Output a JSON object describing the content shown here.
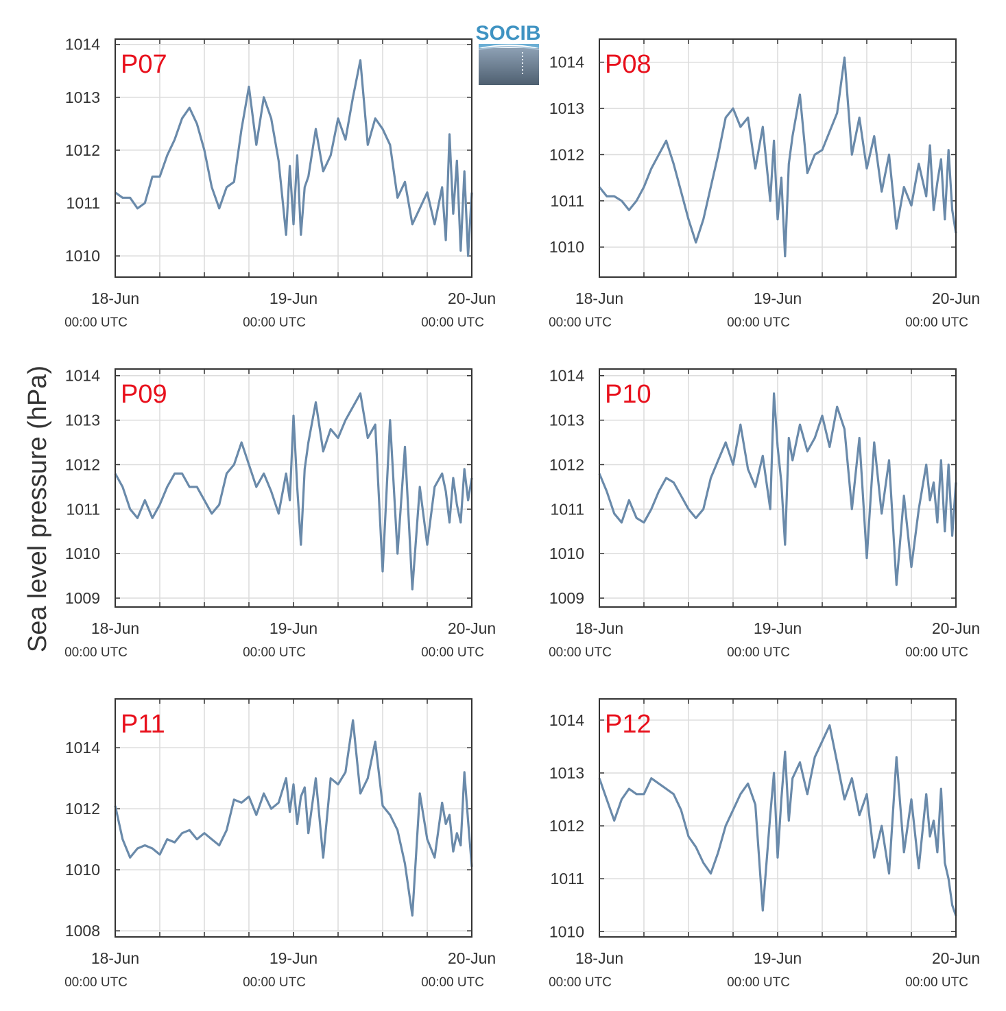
{
  "figure": {
    "ylabel": "Sea level pressure (hPa)",
    "logo_text": "SOCIB",
    "series_color": "#6a8aaa",
    "label_color": "#e8101c",
    "grid_color": "#dcdcdc"
  },
  "chart_data": [
    {
      "type": "line",
      "panel_label": "P07",
      "x_ticks": [
        "18-Jun",
        "19-Jun",
        "20-Jun"
      ],
      "x_ticks_sub": [
        "00:00 UTC",
        "00:00 UTC",
        "00:00 UTC"
      ],
      "xlim": [
        0,
        48
      ],
      "ylim": [
        1009.6,
        1014.1
      ],
      "y_ticks": [
        1010,
        1011,
        1012,
        1013,
        1014
      ],
      "x": [
        0,
        1,
        2,
        3,
        4,
        5,
        6,
        7,
        8,
        9,
        10,
        11,
        12,
        13,
        14,
        15,
        16,
        17,
        18,
        19,
        20,
        21,
        22,
        23,
        23.5,
        24,
        24.5,
        25,
        25.5,
        26,
        27,
        28,
        29,
        30,
        31,
        32,
        33,
        34,
        35,
        36,
        37,
        38,
        39,
        40,
        41,
        42,
        43,
        44,
        44.5,
        45,
        45.5,
        46,
        46.5,
        47,
        47.5,
        48
      ],
      "y": [
        1011.2,
        1011.1,
        1011.1,
        1010.9,
        1011.0,
        1011.5,
        1011.5,
        1011.9,
        1012.2,
        1012.6,
        1012.8,
        1012.5,
        1012.0,
        1011.3,
        1010.9,
        1011.3,
        1011.4,
        1012.4,
        1013.2,
        1012.1,
        1013.0,
        1012.6,
        1011.8,
        1010.4,
        1011.7,
        1010.6,
        1011.9,
        1010.4,
        1011.3,
        1011.5,
        1012.4,
        1011.6,
        1011.9,
        1012.6,
        1012.2,
        1013.0,
        1013.7,
        1012.1,
        1012.6,
        1012.4,
        1012.1,
        1011.1,
        1011.4,
        1010.6,
        1010.9,
        1011.2,
        1010.6,
        1011.3,
        1010.3,
        1012.3,
        1010.8,
        1011.8,
        1010.1,
        1011.6,
        1010.0,
        1011.2
      ]
    },
    {
      "type": "line",
      "panel_label": "P08",
      "x_ticks": [
        "18-Jun",
        "19-Jun",
        "20-Jun"
      ],
      "x_ticks_sub": [
        "00:00 UTC",
        "00:00 UTC",
        "00:00 UTC"
      ],
      "xlim": [
        0,
        48
      ],
      "ylim": [
        1009.35,
        1014.5
      ],
      "y_ticks": [
        1010,
        1011,
        1012,
        1013,
        1014
      ],
      "x": [
        0,
        1,
        2,
        3,
        4,
        5,
        6,
        7,
        8,
        9,
        10,
        11,
        12,
        13,
        14,
        15,
        16,
        17,
        18,
        19,
        20,
        21,
        22,
        23,
        23.5,
        24,
        24.5,
        25,
        25.5,
        26,
        27,
        28,
        29,
        30,
        31,
        32,
        33,
        34,
        35,
        36,
        37,
        38,
        39,
        40,
        41,
        42,
        43,
        44,
        44.5,
        45,
        45.5,
        46,
        46.5,
        47,
        47.5,
        48
      ],
      "y": [
        1011.3,
        1011.1,
        1011.1,
        1011.0,
        1010.8,
        1011.0,
        1011.3,
        1011.7,
        1012.0,
        1012.3,
        1011.8,
        1011.2,
        1010.6,
        1010.1,
        1010.6,
        1011.3,
        1012.0,
        1012.8,
        1013.0,
        1012.6,
        1012.8,
        1011.7,
        1012.6,
        1011.0,
        1012.3,
        1010.6,
        1011.5,
        1009.8,
        1011.8,
        1012.4,
        1013.3,
        1011.6,
        1012.0,
        1012.1,
        1012.5,
        1012.9,
        1014.1,
        1012.0,
        1012.8,
        1011.7,
        1012.4,
        1011.2,
        1012.0,
        1010.4,
        1011.3,
        1010.9,
        1011.8,
        1011.1,
        1012.2,
        1010.8,
        1011.4,
        1011.9,
        1010.6,
        1012.1,
        1010.8,
        1010.3
      ]
    },
    {
      "type": "line",
      "panel_label": "P09",
      "x_ticks": [
        "18-Jun",
        "19-Jun",
        "20-Jun"
      ],
      "x_ticks_sub": [
        "00:00 UTC",
        "00:00 UTC",
        "00:00 UTC"
      ],
      "xlim": [
        0,
        48
      ],
      "ylim": [
        1008.8,
        1014.15
      ],
      "y_ticks": [
        1009,
        1010,
        1011,
        1012,
        1013,
        1014
      ],
      "x": [
        0,
        1,
        2,
        3,
        4,
        5,
        6,
        7,
        8,
        9,
        10,
        11,
        12,
        13,
        14,
        15,
        16,
        17,
        18,
        19,
        20,
        21,
        22,
        23,
        23.5,
        24,
        24.5,
        25,
        25.5,
        26,
        27,
        28,
        29,
        30,
        31,
        32,
        33,
        34,
        35,
        36,
        37,
        38,
        39,
        40,
        41,
        42,
        43,
        44,
        44.5,
        45,
        45.5,
        46,
        46.5,
        47,
        47.5,
        48
      ],
      "y": [
        1011.8,
        1011.5,
        1011.0,
        1010.8,
        1011.2,
        1010.8,
        1011.1,
        1011.5,
        1011.8,
        1011.8,
        1011.5,
        1011.5,
        1011.2,
        1010.9,
        1011.1,
        1011.8,
        1012.0,
        1012.5,
        1012.0,
        1011.5,
        1011.8,
        1011.4,
        1010.9,
        1011.8,
        1011.2,
        1013.1,
        1011.5,
        1010.2,
        1011.9,
        1012.5,
        1013.4,
        1012.3,
        1012.8,
        1012.6,
        1013.0,
        1013.3,
        1013.6,
        1012.6,
        1012.9,
        1009.6,
        1013.0,
        1010.0,
        1012.4,
        1009.2,
        1011.5,
        1010.2,
        1011.5,
        1011.8,
        1011.4,
        1010.7,
        1011.7,
        1011.1,
        1010.7,
        1011.9,
        1011.2,
        1011.7
      ]
    },
    {
      "type": "line",
      "panel_label": "P10",
      "x_ticks": [
        "18-Jun",
        "19-Jun",
        "20-Jun"
      ],
      "x_ticks_sub": [
        "00:00 UTC",
        "00:00 UTC",
        "00:00 UTC"
      ],
      "xlim": [
        0,
        48
      ],
      "ylim": [
        1008.8,
        1014.15
      ],
      "y_ticks": [
        1009,
        1010,
        1011,
        1012,
        1013,
        1014
      ],
      "x": [
        0,
        1,
        2,
        3,
        4,
        5,
        6,
        7,
        8,
        9,
        10,
        11,
        12,
        13,
        14,
        15,
        16,
        17,
        18,
        19,
        20,
        21,
        22,
        23,
        23.5,
        24,
        24.5,
        25,
        25.5,
        26,
        27,
        28,
        29,
        30,
        31,
        32,
        33,
        34,
        35,
        36,
        37,
        38,
        39,
        40,
        41,
        42,
        43,
        44,
        44.5,
        45,
        45.5,
        46,
        46.5,
        47,
        47.5,
        48
      ],
      "y": [
        1011.8,
        1011.4,
        1010.9,
        1010.7,
        1011.2,
        1010.8,
        1010.7,
        1011.0,
        1011.4,
        1011.7,
        1011.6,
        1011.3,
        1011.0,
        1010.8,
        1011.0,
        1011.7,
        1012.1,
        1012.5,
        1012.0,
        1012.9,
        1011.9,
        1011.5,
        1012.2,
        1011.0,
        1013.6,
        1012.4,
        1011.6,
        1010.2,
        1012.6,
        1012.1,
        1012.9,
        1012.3,
        1012.6,
        1013.1,
        1012.4,
        1013.3,
        1012.8,
        1011.0,
        1012.6,
        1009.9,
        1012.5,
        1010.9,
        1012.1,
        1009.3,
        1011.3,
        1009.7,
        1011.0,
        1012.0,
        1011.2,
        1011.6,
        1010.7,
        1012.1,
        1010.5,
        1012.0,
        1010.4,
        1011.6
      ]
    },
    {
      "type": "line",
      "panel_label": "P11",
      "x_ticks": [
        "18-Jun",
        "19-Jun",
        "20-Jun"
      ],
      "x_ticks_sub": [
        "00:00 UTC",
        "00:00 UTC",
        "00:00 UTC"
      ],
      "xlim": [
        0,
        48
      ],
      "ylim": [
        1007.8,
        1015.6
      ],
      "y_ticks": [
        1008,
        1010,
        1012,
        1014
      ],
      "x": [
        0,
        1,
        2,
        3,
        4,
        5,
        6,
        7,
        8,
        9,
        10,
        11,
        12,
        13,
        14,
        15,
        16,
        17,
        18,
        19,
        20,
        21,
        22,
        23,
        23.5,
        24,
        24.5,
        25,
        25.5,
        26,
        27,
        28,
        29,
        30,
        31,
        32,
        33,
        34,
        35,
        36,
        37,
        38,
        39,
        40,
        41,
        42,
        43,
        44,
        44.5,
        45,
        45.5,
        46,
        46.5,
        47,
        47.5,
        48
      ],
      "y": [
        1012.1,
        1011.0,
        1010.4,
        1010.7,
        1010.8,
        1010.7,
        1010.5,
        1011.0,
        1010.9,
        1011.2,
        1011.3,
        1011.0,
        1011.2,
        1011.0,
        1010.8,
        1011.3,
        1012.3,
        1012.2,
        1012.4,
        1011.8,
        1012.5,
        1012.0,
        1012.2,
        1013.0,
        1011.9,
        1012.8,
        1011.5,
        1012.4,
        1012.7,
        1011.2,
        1013.0,
        1010.4,
        1013.0,
        1012.8,
        1013.2,
        1014.9,
        1012.5,
        1013.0,
        1014.2,
        1012.1,
        1011.8,
        1011.3,
        1010.2,
        1008.5,
        1012.5,
        1011.0,
        1010.4,
        1012.2,
        1011.5,
        1011.8,
        1010.6,
        1011.2,
        1010.8,
        1013.2,
        1011.6,
        1010.1
      ]
    },
    {
      "type": "line",
      "panel_label": "P12",
      "x_ticks": [
        "18-Jun",
        "19-Jun",
        "20-Jun"
      ],
      "x_ticks_sub": [
        "00:00 UTC",
        "00:00 UTC",
        "00:00 UTC"
      ],
      "xlim": [
        0,
        48
      ],
      "ylim": [
        1009.9,
        1014.4
      ],
      "y_ticks": [
        1010,
        1011,
        1012,
        1013,
        1014
      ],
      "x": [
        0,
        1,
        2,
        3,
        4,
        5,
        6,
        7,
        8,
        9,
        10,
        11,
        12,
        13,
        14,
        15,
        16,
        17,
        18,
        19,
        20,
        21,
        22,
        23,
        23.5,
        24,
        24.5,
        25,
        25.5,
        26,
        27,
        28,
        29,
        30,
        31,
        32,
        33,
        34,
        35,
        36,
        37,
        38,
        39,
        40,
        41,
        42,
        43,
        44,
        44.5,
        45,
        45.5,
        46,
        46.5,
        47,
        47.5,
        48
      ],
      "y": [
        1012.9,
        1012.5,
        1012.1,
        1012.5,
        1012.7,
        1012.6,
        1012.6,
        1012.9,
        1012.8,
        1012.7,
        1012.6,
        1012.3,
        1011.8,
        1011.6,
        1011.3,
        1011.1,
        1011.5,
        1012.0,
        1012.3,
        1012.6,
        1012.8,
        1012.4,
        1010.4,
        1012.2,
        1013.0,
        1011.4,
        1012.5,
        1013.4,
        1012.1,
        1012.9,
        1013.2,
        1012.6,
        1013.3,
        1013.6,
        1013.9,
        1013.2,
        1012.5,
        1012.9,
        1012.2,
        1012.6,
        1011.4,
        1012.0,
        1011.1,
        1013.3,
        1011.5,
        1012.5,
        1011.2,
        1012.6,
        1011.8,
        1012.1,
        1011.5,
        1012.7,
        1011.3,
        1011.0,
        1010.5,
        1010.3
      ]
    }
  ]
}
